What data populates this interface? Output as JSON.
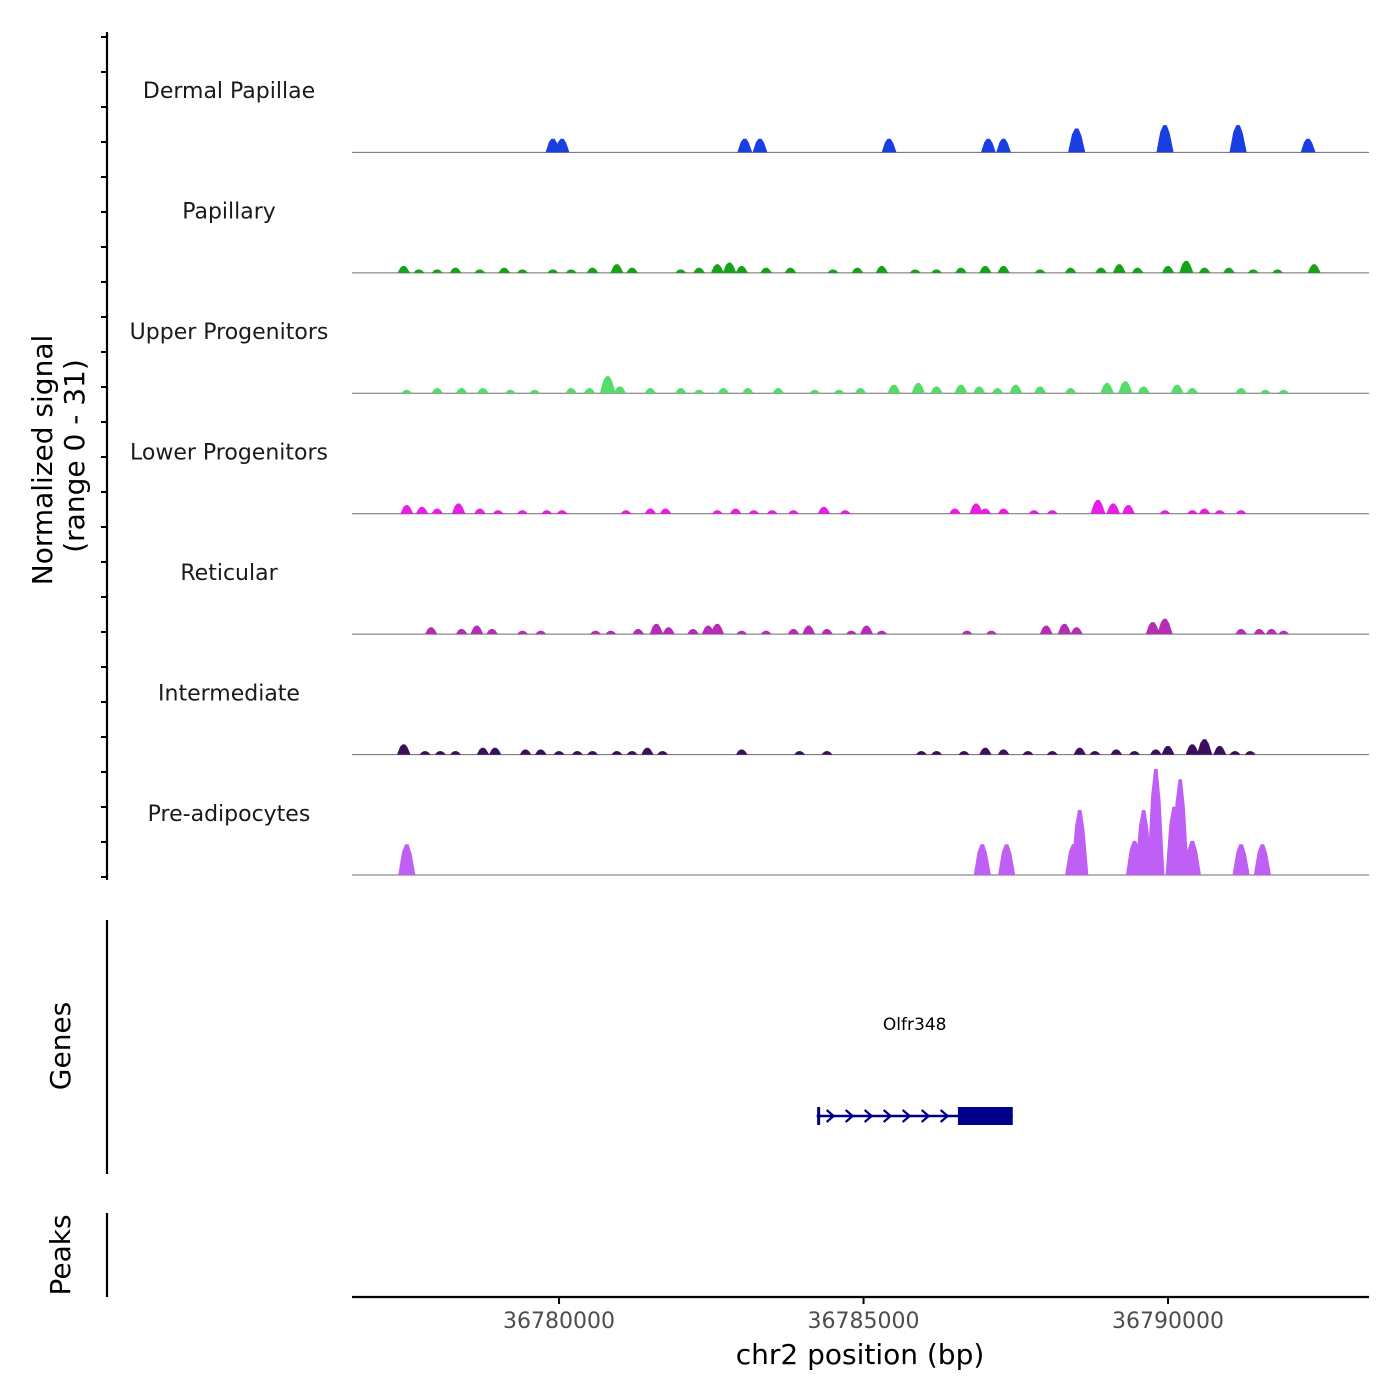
{
  "chart_data": {
    "type": "area",
    "chromosome": "chr2",
    "xlabel": "chr2 position (bp)",
    "ylabel_line1": "Normalized signal",
    "ylabel_line2": "(range 0 - 31)",
    "y_range": [
      0,
      31
    ],
    "xlim": [
      36776600,
      36793300
    ],
    "x_ticks": [
      {
        "value": 36780000,
        "label": "36780000"
      },
      {
        "value": 36785000,
        "label": "36785000"
      },
      {
        "value": 36790000,
        "label": "36790000"
      }
    ],
    "tracks": [
      {
        "name": "Dermal Papillae",
        "color": "#1a3fe0",
        "peaks": [
          [
            36779900,
            4
          ],
          [
            36780050,
            4
          ],
          [
            36783050,
            4
          ],
          [
            36783300,
            4
          ],
          [
            36785420,
            4
          ],
          [
            36787050,
            4
          ],
          [
            36787300,
            4
          ],
          [
            36788500,
            7
          ],
          [
            36789950,
            8
          ],
          [
            36791150,
            8
          ],
          [
            36792300,
            4
          ]
        ]
      },
      {
        "name": "Papillary",
        "color": "#17a317",
        "peaks": [
          [
            36777450,
            2
          ],
          [
            36777700,
            1
          ],
          [
            36778000,
            1
          ],
          [
            36778300,
            1.5
          ],
          [
            36778700,
            1
          ],
          [
            36779100,
            1.5
          ],
          [
            36779400,
            1
          ],
          [
            36779900,
            1
          ],
          [
            36780200,
            1
          ],
          [
            36780550,
            1.5
          ],
          [
            36780950,
            2.5
          ],
          [
            36781200,
            1.5
          ],
          [
            36782000,
            1
          ],
          [
            36782300,
            1.5
          ],
          [
            36782600,
            2.5
          ],
          [
            36782800,
            3
          ],
          [
            36783000,
            2
          ],
          [
            36783400,
            1.5
          ],
          [
            36783800,
            1.5
          ],
          [
            36784500,
            1
          ],
          [
            36784900,
            1.5
          ],
          [
            36785300,
            2
          ],
          [
            36785850,
            1
          ],
          [
            36786200,
            1
          ],
          [
            36786600,
            1.5
          ],
          [
            36787000,
            2
          ],
          [
            36787300,
            2
          ],
          [
            36787900,
            1
          ],
          [
            36788400,
            1.5
          ],
          [
            36788900,
            1.5
          ],
          [
            36789200,
            2.5
          ],
          [
            36789500,
            1.5
          ],
          [
            36790000,
            2
          ],
          [
            36790300,
            3.5
          ],
          [
            36790600,
            1.5
          ],
          [
            36791000,
            1.5
          ],
          [
            36791400,
            1
          ],
          [
            36791800,
            1
          ],
          [
            36792400,
            2.5
          ]
        ]
      },
      {
        "name": "Upper Progenitors",
        "color": "#55db68",
        "peaks": [
          [
            36777500,
            1
          ],
          [
            36778000,
            1.5
          ],
          [
            36778400,
            1.5
          ],
          [
            36778750,
            1.5
          ],
          [
            36779200,
            1
          ],
          [
            36779600,
            1
          ],
          [
            36780200,
            1.5
          ],
          [
            36780500,
            1.5
          ],
          [
            36780800,
            5
          ],
          [
            36781000,
            2
          ],
          [
            36781500,
            1.5
          ],
          [
            36782000,
            1.5
          ],
          [
            36782300,
            1
          ],
          [
            36782700,
            1.5
          ],
          [
            36783100,
            1.5
          ],
          [
            36783600,
            1.5
          ],
          [
            36784200,
            1
          ],
          [
            36784600,
            1
          ],
          [
            36784950,
            1.5
          ],
          [
            36785500,
            2.5
          ],
          [
            36785900,
            3
          ],
          [
            36786200,
            2
          ],
          [
            36786600,
            2.5
          ],
          [
            36786900,
            2
          ],
          [
            36787200,
            1.5
          ],
          [
            36787500,
            2.5
          ],
          [
            36787900,
            2
          ],
          [
            36788400,
            1.5
          ],
          [
            36789000,
            3
          ],
          [
            36789300,
            3.5
          ],
          [
            36789600,
            2
          ],
          [
            36790150,
            2.5
          ],
          [
            36790400,
            1.5
          ],
          [
            36791200,
            1.5
          ],
          [
            36791600,
            1
          ],
          [
            36791900,
            1
          ]
        ]
      },
      {
        "name": "Lower Progenitors",
        "color": "#e61ee6",
        "peaks": [
          [
            36777500,
            2.5
          ],
          [
            36777750,
            2
          ],
          [
            36778000,
            1.5
          ],
          [
            36778350,
            3
          ],
          [
            36778700,
            1.5
          ],
          [
            36779000,
            1
          ],
          [
            36779400,
            1
          ],
          [
            36779800,
            1
          ],
          [
            36780050,
            1
          ],
          [
            36781100,
            1
          ],
          [
            36781500,
            1.5
          ],
          [
            36781750,
            1.5
          ],
          [
            36782600,
            1
          ],
          [
            36782900,
            1.5
          ],
          [
            36783200,
            1
          ],
          [
            36783500,
            1
          ],
          [
            36783850,
            1
          ],
          [
            36784350,
            2
          ],
          [
            36784700,
            1
          ],
          [
            36786500,
            1.5
          ],
          [
            36786850,
            3
          ],
          [
            36787000,
            1.5
          ],
          [
            36787300,
            1.5
          ],
          [
            36787800,
            1
          ],
          [
            36788100,
            1
          ],
          [
            36788850,
            4
          ],
          [
            36789100,
            3
          ],
          [
            36789350,
            2.5
          ],
          [
            36789950,
            1
          ],
          [
            36790400,
            1
          ],
          [
            36790600,
            1.5
          ],
          [
            36790850,
            1
          ],
          [
            36791200,
            1
          ]
        ]
      },
      {
        "name": "Reticular",
        "color": "#b52db5",
        "peaks": [
          [
            36777900,
            2
          ],
          [
            36778400,
            1.5
          ],
          [
            36778650,
            2.5
          ],
          [
            36778900,
            1.5
          ],
          [
            36779400,
            1
          ],
          [
            36779700,
            1
          ],
          [
            36780600,
            1
          ],
          [
            36780850,
            1
          ],
          [
            36781300,
            1.5
          ],
          [
            36781600,
            3
          ],
          [
            36781800,
            2
          ],
          [
            36782200,
            1.5
          ],
          [
            36782450,
            2.5
          ],
          [
            36782600,
            3
          ],
          [
            36783000,
            1
          ],
          [
            36783400,
            1
          ],
          [
            36783850,
            1.5
          ],
          [
            36784100,
            2.5
          ],
          [
            36784400,
            1.5
          ],
          [
            36784800,
            1
          ],
          [
            36785050,
            2.5
          ],
          [
            36785300,
            1
          ],
          [
            36786700,
            1
          ],
          [
            36787100,
            1
          ],
          [
            36788000,
            2.5
          ],
          [
            36788300,
            3
          ],
          [
            36788500,
            2
          ],
          [
            36789750,
            3.5
          ],
          [
            36789950,
            4.5
          ],
          [
            36791200,
            1.5
          ],
          [
            36791500,
            1.5
          ],
          [
            36791700,
            1.5
          ],
          [
            36791900,
            1
          ]
        ]
      },
      {
        "name": "Intermediate",
        "color": "#3b0f5c",
        "peaks": [
          [
            36777450,
            3
          ],
          [
            36777800,
            1
          ],
          [
            36778050,
            1
          ],
          [
            36778300,
            1
          ],
          [
            36778750,
            2
          ],
          [
            36778950,
            2
          ],
          [
            36779450,
            1.5
          ],
          [
            36779700,
            1.5
          ],
          [
            36780000,
            1
          ],
          [
            36780300,
            1
          ],
          [
            36780550,
            1
          ],
          [
            36780950,
            1
          ],
          [
            36781200,
            1
          ],
          [
            36781450,
            2
          ],
          [
            36781700,
            1
          ],
          [
            36783000,
            1.5
          ],
          [
            36783950,
            1
          ],
          [
            36784400,
            1
          ],
          [
            36785950,
            1
          ],
          [
            36786200,
            1
          ],
          [
            36786650,
            1
          ],
          [
            36787000,
            2
          ],
          [
            36787300,
            1.5
          ],
          [
            36787700,
            1
          ],
          [
            36788100,
            1
          ],
          [
            36788550,
            2
          ],
          [
            36788800,
            1
          ],
          [
            36789150,
            1.5
          ],
          [
            36789450,
            1
          ],
          [
            36789800,
            1.5
          ],
          [
            36790000,
            2.5
          ],
          [
            36790400,
            3
          ],
          [
            36790600,
            4.5
          ],
          [
            36790850,
            2.5
          ],
          [
            36791100,
            1
          ],
          [
            36791350,
            1
          ]
        ]
      },
      {
        "name": "Pre-adipocytes",
        "color": "#c05ff5",
        "peaks": [
          [
            36777500,
            9
          ],
          [
            36786950,
            9
          ],
          [
            36787350,
            9
          ],
          [
            36788450,
            9
          ],
          [
            36788550,
            19
          ],
          [
            36789450,
            10
          ],
          [
            36789600,
            19
          ],
          [
            36789800,
            31
          ],
          [
            36790100,
            20
          ],
          [
            36790200,
            28
          ],
          [
            36790400,
            10
          ],
          [
            36791200,
            9
          ],
          [
            36791550,
            9
          ]
        ]
      }
    ],
    "genes": [
      {
        "name": "Olfr348",
        "strand": "+",
        "start": 36784230,
        "end": 36787450,
        "thick_start": 36786550,
        "thick_end": 36787450
      }
    ],
    "sections": {
      "genes_label": "Genes",
      "peaks_label": "Peaks"
    }
  }
}
